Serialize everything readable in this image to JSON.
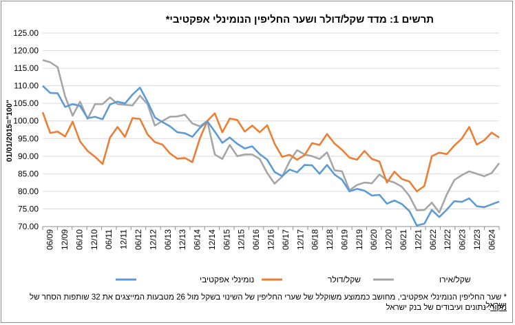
{
  "title": "תרשים 1: מדד שקל/דולר ושער החליפין הנומינלי אפקטיבי*",
  "footnote": "* שער החליפין הנומינלי אפקטיבי, מחושב כממוצע משוקלל של שערי החליפין של השינוי בשקל מול 26 מטבעות המייצגים את 32  שותפות הסחר של ישראל.",
  "source_label": "מקור",
  "source_text": ": נתונים ועיבודים של בנק ישראל",
  "colors": {
    "nominal": "#5b9bd5",
    "usd": "#ed7d31",
    "eur": "#a5a5a5"
  },
  "chart_data": {
    "type": "line",
    "title": "תרשים 1: מדד שקל/דולר ושער החליפין הנומינלי אפקטיבי*",
    "ylabel": "01/01/2015=\"100\"",
    "xlabel": "",
    "ylim": [
      70,
      125
    ],
    "yticks": [
      "70.00",
      "75.00",
      "80.00",
      "85.00",
      "90.00",
      "95.00",
      "100.00",
      "105.00",
      "110.00",
      "115.00",
      "120.00",
      "125.00"
    ],
    "grid": true,
    "legend": "bottom",
    "x_tick_labels": [
      "06/09",
      "12/09",
      "06/10",
      "12/10",
      "06/11",
      "12/11",
      "06/12",
      "12/12",
      "06/13",
      "12/13",
      "06/14",
      "12/14",
      "06/15",
      "12/15",
      "06/16",
      "12/16",
      "06/17",
      "12/17",
      "06/18",
      "12/18",
      "06/19",
      "12/19",
      "06/20",
      "12/20",
      "06/21",
      "12/21",
      "06/22",
      "12/22",
      "06/23",
      "12/23",
      "06/24"
    ],
    "series": [
      {
        "name": "נומינלי אפקטיבי",
        "color": "#5b9bd5",
        "values": [
          110.0,
          108.0,
          107.9,
          104.0,
          104.8,
          104.3,
          100.8,
          101.2,
          100.5,
          104.7,
          105.5,
          105.0,
          107.5,
          109.5,
          105.5,
          101.0,
          99.7,
          98.5,
          96.8,
          96.5,
          95.5,
          98.0,
          99.9,
          97.0,
          93.8,
          95.3,
          93.5,
          92.2,
          92.8,
          90.6,
          89.0,
          85.5,
          84.3,
          86.2,
          85.4,
          87.5,
          87.4,
          85.0,
          87.5,
          84.8,
          83.3,
          80.0,
          80.7,
          80.2,
          78.8,
          79.0,
          76.5,
          77.4,
          76.4,
          74.4,
          70.3,
          70.8,
          74.7,
          72.7,
          74.8,
          77.2,
          77.0,
          78.0,
          75.8,
          75.5,
          76.3,
          77.1
        ]
      },
      {
        "name": "שקל/דולר",
        "color": "#ed7d31",
        "values": [
          102.5,
          96.6,
          97.0,
          95.6,
          99.8,
          94.2,
          91.5,
          89.8,
          87.8,
          95.3,
          98.3,
          95.5,
          100.8,
          100.6,
          96.2,
          94.0,
          93.3,
          90.8,
          89.3,
          89.5,
          88.3,
          95.0,
          100.0,
          102.2,
          96.8,
          100.7,
          100.3,
          97.0,
          98.7,
          96.8,
          98.8,
          93.5,
          89.8,
          90.4,
          89.0,
          90.3,
          93.7,
          93.2,
          96.3,
          93.6,
          91.8,
          89.6,
          89.0,
          91.5,
          89.2,
          88.5,
          82.5,
          85.6,
          83.5,
          82.8,
          80.0,
          81.5,
          90.0,
          91.0,
          90.6,
          93.0,
          95.0,
          98.3,
          93.3,
          94.5,
          96.7,
          95.3
        ]
      },
      {
        "name": "שקל/אירו",
        "color": "#a5a5a5",
        "values": [
          117.3,
          116.7,
          115.3,
          107.0,
          101.5,
          105.5,
          100.6,
          104.8,
          104.8,
          106.7,
          104.8,
          104.6,
          104.4,
          107.2,
          104.8,
          98.7,
          100.0,
          101.2,
          101.3,
          101.8,
          99.3,
          98.5,
          100.0,
          90.5,
          89.2,
          93.2,
          90.0,
          90.5,
          90.5,
          89.2,
          85.2,
          82.2,
          84.2,
          88.6,
          91.7,
          90.5,
          90.0,
          89.2,
          91.1,
          86.0,
          85.7,
          80.3,
          81.8,
          82.5,
          82.3,
          84.8,
          83.2,
          82.5,
          81.3,
          78.7,
          74.6,
          74.7,
          76.8,
          74.0,
          79.1,
          83.2,
          84.6,
          85.7,
          85.0,
          84.3,
          85.2,
          88.0
        ]
      }
    ]
  }
}
